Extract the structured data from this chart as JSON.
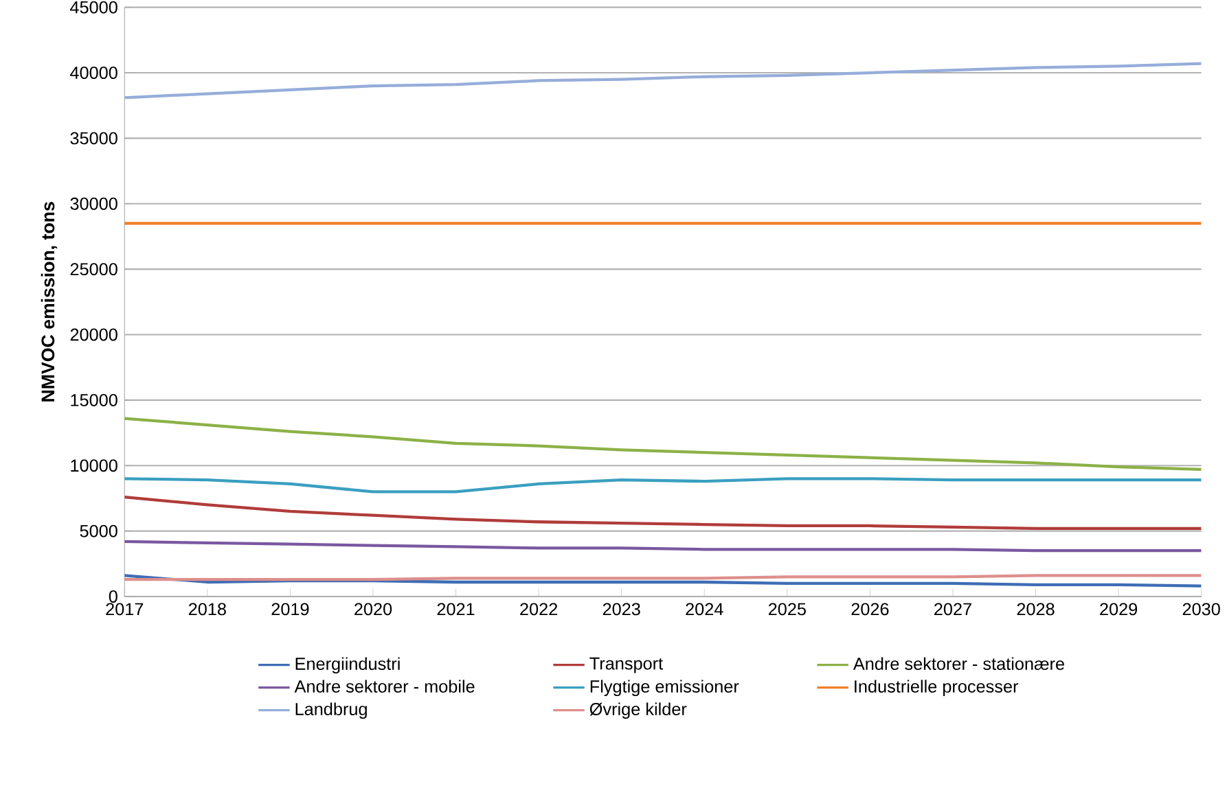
{
  "chart_data": {
    "type": "line",
    "ylabel": "NMVOC emission, tons",
    "x": [
      2017,
      2018,
      2019,
      2020,
      2021,
      2022,
      2023,
      2024,
      2025,
      2026,
      2027,
      2028,
      2029,
      2030
    ],
    "xlim": [
      2017,
      2030
    ],
    "xticks": [
      2017,
      2018,
      2019,
      2020,
      2021,
      2022,
      2023,
      2024,
      2025,
      2026,
      2027,
      2028,
      2029,
      2030
    ],
    "ylim": [
      0,
      45000
    ],
    "yticks": [
      0,
      5000,
      10000,
      15000,
      20000,
      25000,
      30000,
      35000,
      40000,
      45000
    ],
    "grid": "y",
    "legend": "bottom",
    "marker": "none",
    "line_style": "solid",
    "series": [
      {
        "name": "Energiindustri",
        "color": "#3e6db5",
        "values": [
          1600,
          1100,
          1200,
          1200,
          1100,
          1100,
          1100,
          1100,
          1000,
          1000,
          1000,
          900,
          900,
          800
        ]
      },
      {
        "name": "Transport",
        "color": "#b03c3a",
        "values": [
          7600,
          7000,
          6500,
          6200,
          5900,
          5700,
          5600,
          5500,
          5400,
          5400,
          5300,
          5200,
          5200,
          5200
        ]
      },
      {
        "name": "Andre sektorer - stationære",
        "color": "#8cb146",
        "values": [
          13600,
          13100,
          12600,
          12200,
          11700,
          11500,
          11200,
          11000,
          10800,
          10600,
          10400,
          10200,
          9900,
          9700
        ]
      },
      {
        "name": "Andre sektorer - mobile",
        "color": "#7a58a0",
        "values": [
          4200,
          4100,
          4000,
          3900,
          3800,
          3700,
          3700,
          3600,
          3600,
          3600,
          3600,
          3500,
          3500,
          3500
        ]
      },
      {
        "name": "Flygtige emissioner",
        "color": "#3a9fc0",
        "values": [
          9000,
          8900,
          8600,
          8000,
          8000,
          8600,
          8900,
          8800,
          9000,
          9000,
          8900,
          8900,
          8900,
          8900
        ]
      },
      {
        "name": "Industrielle processer",
        "color": "#f07f2a",
        "values": [
          28500,
          28500,
          28500,
          28500,
          28500,
          28500,
          28500,
          28500,
          28500,
          28500,
          28500,
          28500,
          28500,
          28500
        ]
      },
      {
        "name": "Landbrug",
        "color": "#96adda",
        "values": [
          38100,
          38400,
          38700,
          39000,
          39100,
          39400,
          39500,
          39700,
          39800,
          40000,
          40200,
          40400,
          40500,
          40700
        ]
      },
      {
        "name": "Øvrige kilder",
        "color": "#de8f8c",
        "values": [
          1300,
          1300,
          1300,
          1300,
          1400,
          1400,
          1400,
          1400,
          1500,
          1500,
          1500,
          1600,
          1600,
          1600
        ]
      }
    ]
  }
}
